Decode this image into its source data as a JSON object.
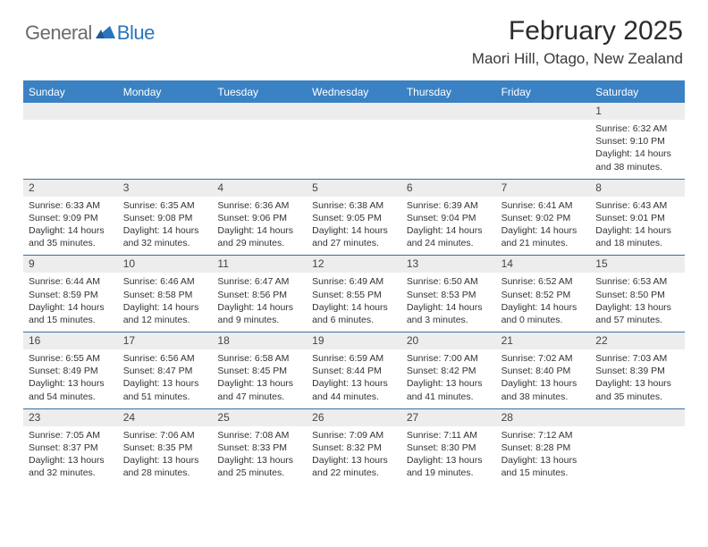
{
  "logo": {
    "general": "General",
    "blue": "Blue"
  },
  "header": {
    "month_title": "February 2025",
    "location": "Maori Hill, Otago, New Zealand"
  },
  "colors": {
    "header_bar": "#3a82c4",
    "daynum_bg": "#ededed",
    "rule": "#3a6fa5",
    "logo_gray": "#6b6b6b",
    "logo_blue": "#2a75bb"
  },
  "weekdays": [
    "Sunday",
    "Monday",
    "Tuesday",
    "Wednesday",
    "Thursday",
    "Friday",
    "Saturday"
  ],
  "weeks": [
    [
      {
        "n": "",
        "sr": "",
        "ss": "",
        "dl": ""
      },
      {
        "n": "",
        "sr": "",
        "ss": "",
        "dl": ""
      },
      {
        "n": "",
        "sr": "",
        "ss": "",
        "dl": ""
      },
      {
        "n": "",
        "sr": "",
        "ss": "",
        "dl": ""
      },
      {
        "n": "",
        "sr": "",
        "ss": "",
        "dl": ""
      },
      {
        "n": "",
        "sr": "",
        "ss": "",
        "dl": ""
      },
      {
        "n": "1",
        "sr": "Sunrise: 6:32 AM",
        "ss": "Sunset: 9:10 PM",
        "dl": "Daylight: 14 hours and 38 minutes."
      }
    ],
    [
      {
        "n": "2",
        "sr": "Sunrise: 6:33 AM",
        "ss": "Sunset: 9:09 PM",
        "dl": "Daylight: 14 hours and 35 minutes."
      },
      {
        "n": "3",
        "sr": "Sunrise: 6:35 AM",
        "ss": "Sunset: 9:08 PM",
        "dl": "Daylight: 14 hours and 32 minutes."
      },
      {
        "n": "4",
        "sr": "Sunrise: 6:36 AM",
        "ss": "Sunset: 9:06 PM",
        "dl": "Daylight: 14 hours and 29 minutes."
      },
      {
        "n": "5",
        "sr": "Sunrise: 6:38 AM",
        "ss": "Sunset: 9:05 PM",
        "dl": "Daylight: 14 hours and 27 minutes."
      },
      {
        "n": "6",
        "sr": "Sunrise: 6:39 AM",
        "ss": "Sunset: 9:04 PM",
        "dl": "Daylight: 14 hours and 24 minutes."
      },
      {
        "n": "7",
        "sr": "Sunrise: 6:41 AM",
        "ss": "Sunset: 9:02 PM",
        "dl": "Daylight: 14 hours and 21 minutes."
      },
      {
        "n": "8",
        "sr": "Sunrise: 6:43 AM",
        "ss": "Sunset: 9:01 PM",
        "dl": "Daylight: 14 hours and 18 minutes."
      }
    ],
    [
      {
        "n": "9",
        "sr": "Sunrise: 6:44 AM",
        "ss": "Sunset: 8:59 PM",
        "dl": "Daylight: 14 hours and 15 minutes."
      },
      {
        "n": "10",
        "sr": "Sunrise: 6:46 AM",
        "ss": "Sunset: 8:58 PM",
        "dl": "Daylight: 14 hours and 12 minutes."
      },
      {
        "n": "11",
        "sr": "Sunrise: 6:47 AM",
        "ss": "Sunset: 8:56 PM",
        "dl": "Daylight: 14 hours and 9 minutes."
      },
      {
        "n": "12",
        "sr": "Sunrise: 6:49 AM",
        "ss": "Sunset: 8:55 PM",
        "dl": "Daylight: 14 hours and 6 minutes."
      },
      {
        "n": "13",
        "sr": "Sunrise: 6:50 AM",
        "ss": "Sunset: 8:53 PM",
        "dl": "Daylight: 14 hours and 3 minutes."
      },
      {
        "n": "14",
        "sr": "Sunrise: 6:52 AM",
        "ss": "Sunset: 8:52 PM",
        "dl": "Daylight: 14 hours and 0 minutes."
      },
      {
        "n": "15",
        "sr": "Sunrise: 6:53 AM",
        "ss": "Sunset: 8:50 PM",
        "dl": "Daylight: 13 hours and 57 minutes."
      }
    ],
    [
      {
        "n": "16",
        "sr": "Sunrise: 6:55 AM",
        "ss": "Sunset: 8:49 PM",
        "dl": "Daylight: 13 hours and 54 minutes."
      },
      {
        "n": "17",
        "sr": "Sunrise: 6:56 AM",
        "ss": "Sunset: 8:47 PM",
        "dl": "Daylight: 13 hours and 51 minutes."
      },
      {
        "n": "18",
        "sr": "Sunrise: 6:58 AM",
        "ss": "Sunset: 8:45 PM",
        "dl": "Daylight: 13 hours and 47 minutes."
      },
      {
        "n": "19",
        "sr": "Sunrise: 6:59 AM",
        "ss": "Sunset: 8:44 PM",
        "dl": "Daylight: 13 hours and 44 minutes."
      },
      {
        "n": "20",
        "sr": "Sunrise: 7:00 AM",
        "ss": "Sunset: 8:42 PM",
        "dl": "Daylight: 13 hours and 41 minutes."
      },
      {
        "n": "21",
        "sr": "Sunrise: 7:02 AM",
        "ss": "Sunset: 8:40 PM",
        "dl": "Daylight: 13 hours and 38 minutes."
      },
      {
        "n": "22",
        "sr": "Sunrise: 7:03 AM",
        "ss": "Sunset: 8:39 PM",
        "dl": "Daylight: 13 hours and 35 minutes."
      }
    ],
    [
      {
        "n": "23",
        "sr": "Sunrise: 7:05 AM",
        "ss": "Sunset: 8:37 PM",
        "dl": "Daylight: 13 hours and 32 minutes."
      },
      {
        "n": "24",
        "sr": "Sunrise: 7:06 AM",
        "ss": "Sunset: 8:35 PM",
        "dl": "Daylight: 13 hours and 28 minutes."
      },
      {
        "n": "25",
        "sr": "Sunrise: 7:08 AM",
        "ss": "Sunset: 8:33 PM",
        "dl": "Daylight: 13 hours and 25 minutes."
      },
      {
        "n": "26",
        "sr": "Sunrise: 7:09 AM",
        "ss": "Sunset: 8:32 PM",
        "dl": "Daylight: 13 hours and 22 minutes."
      },
      {
        "n": "27",
        "sr": "Sunrise: 7:11 AM",
        "ss": "Sunset: 8:30 PM",
        "dl": "Daylight: 13 hours and 19 minutes."
      },
      {
        "n": "28",
        "sr": "Sunrise: 7:12 AM",
        "ss": "Sunset: 8:28 PM",
        "dl": "Daylight: 13 hours and 15 minutes."
      },
      {
        "n": "",
        "sr": "",
        "ss": "",
        "dl": ""
      }
    ]
  ]
}
